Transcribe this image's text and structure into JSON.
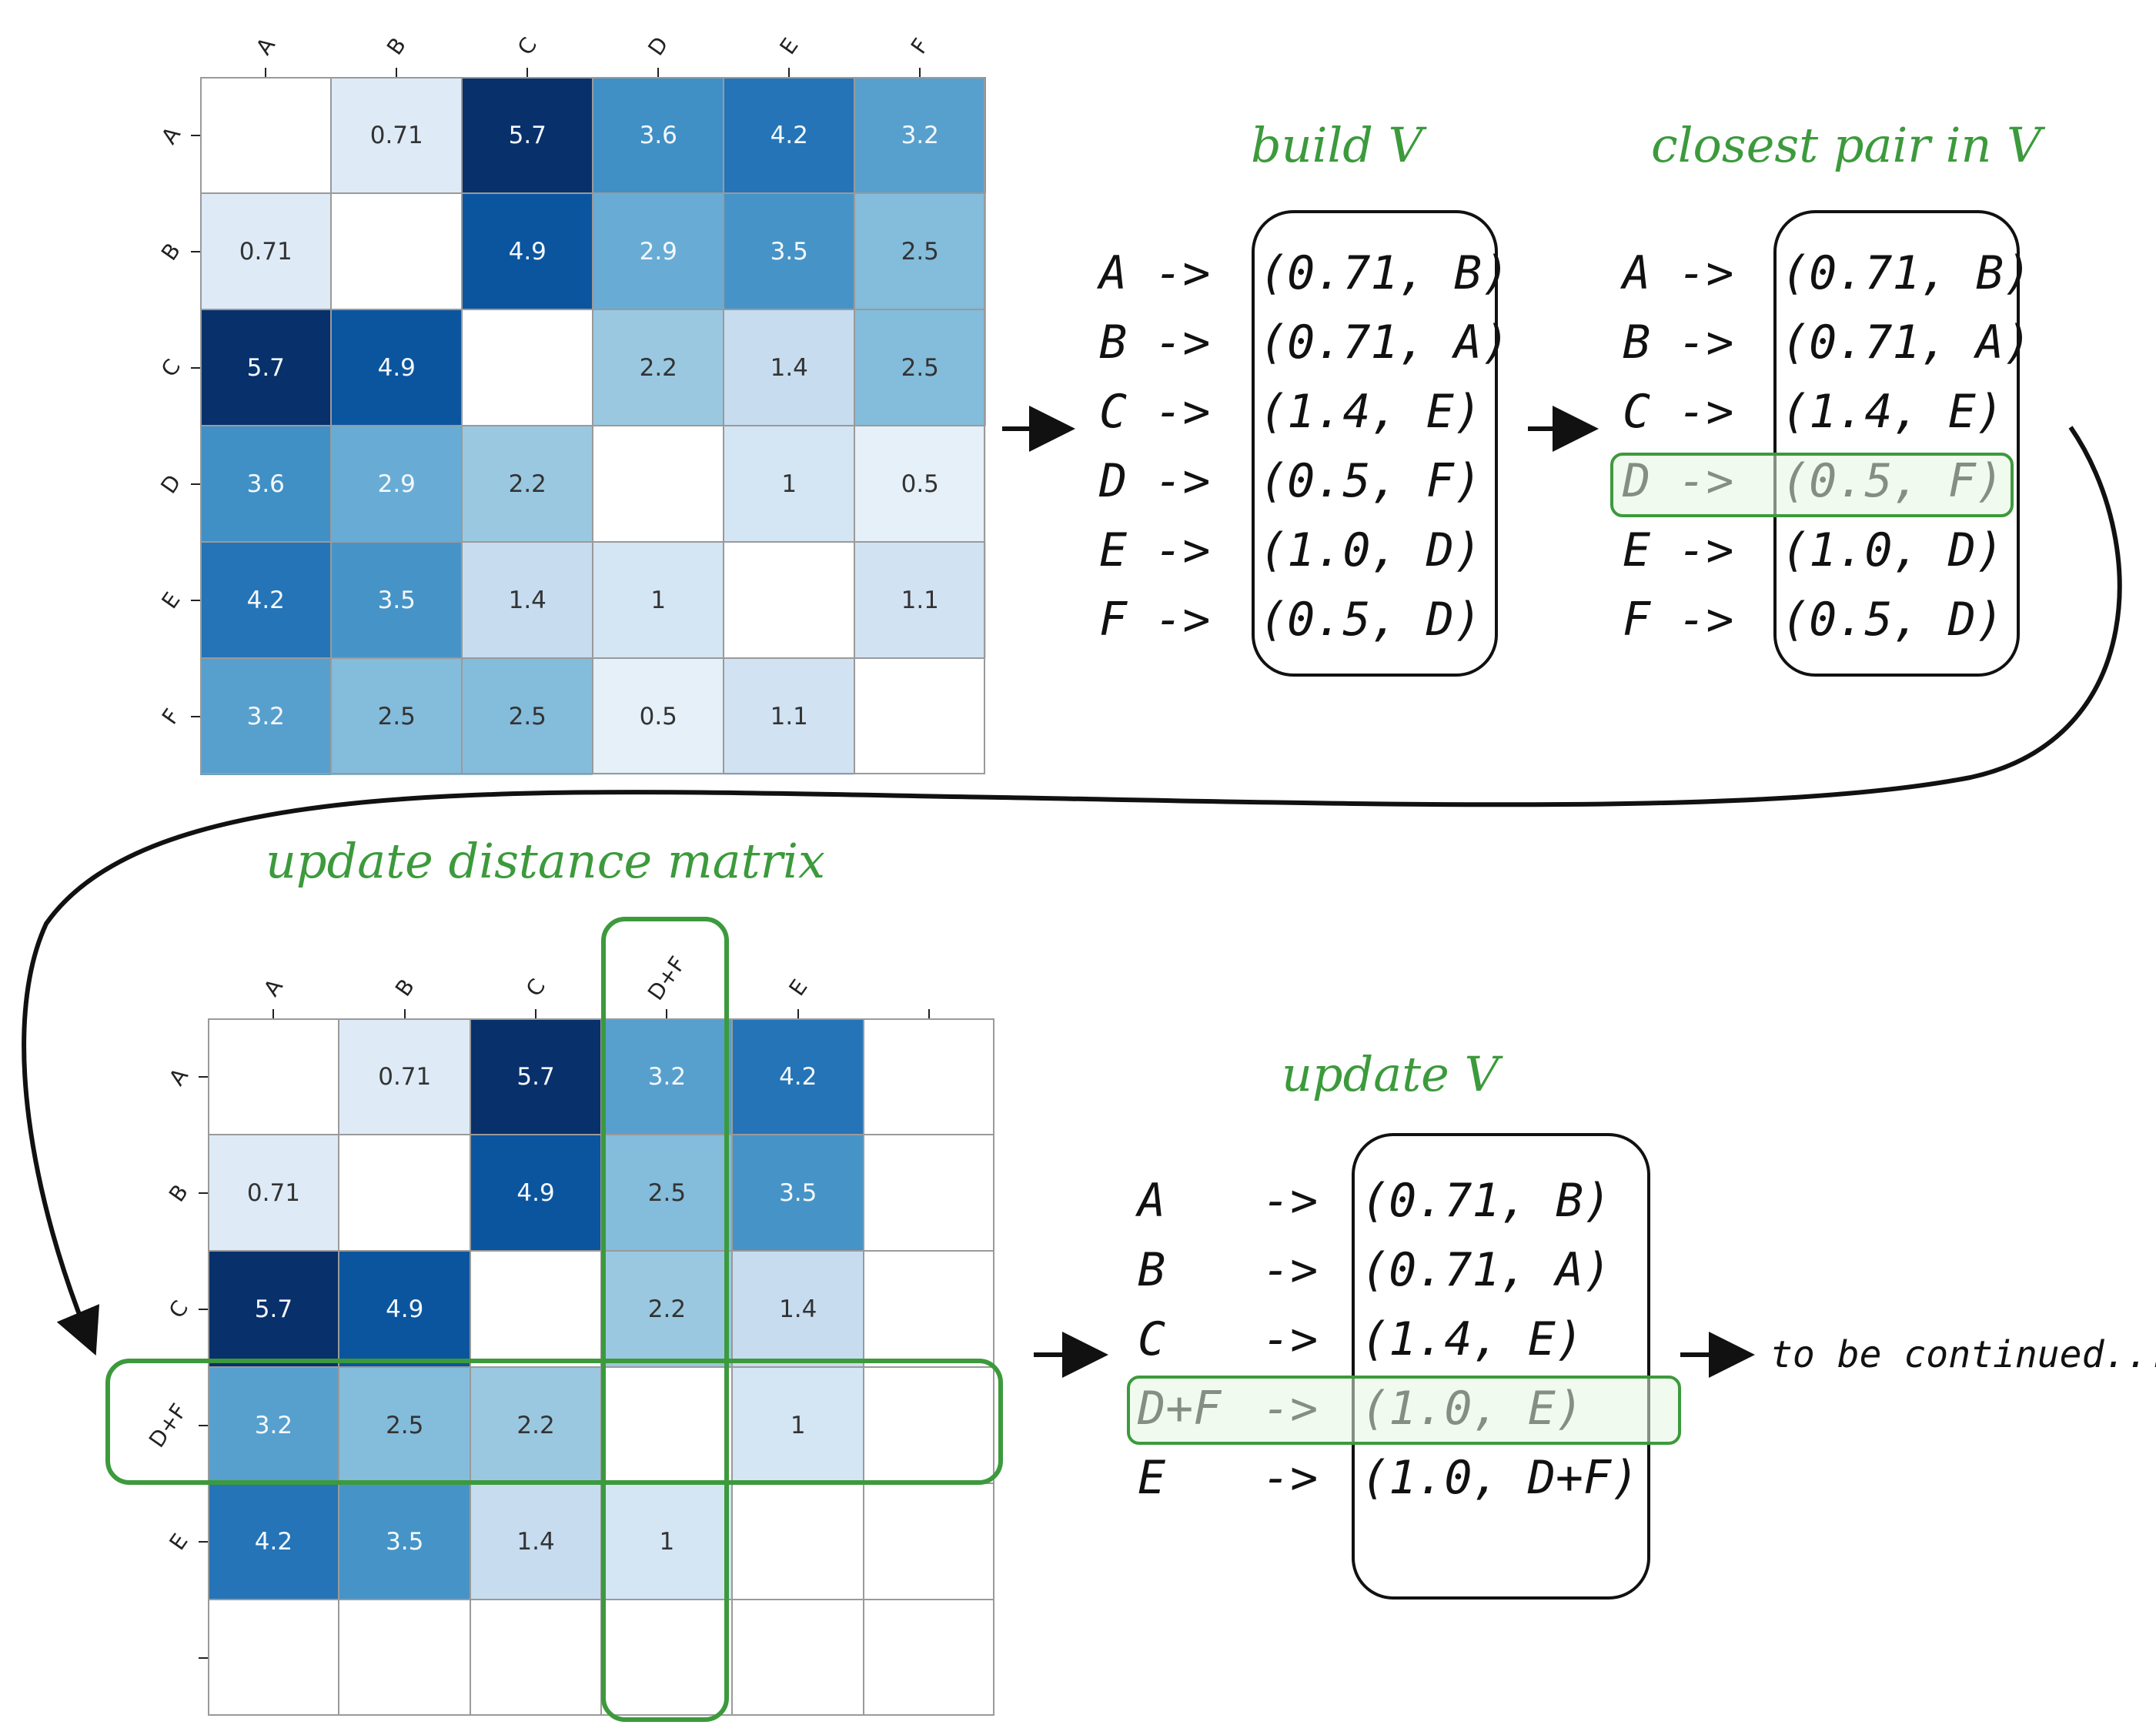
{
  "matrix_initial": {
    "col_labels": [
      "A",
      "B",
      "C",
      "D",
      "E",
      "F"
    ],
    "row_labels": [
      "A",
      "B",
      "C",
      "D",
      "E",
      "F"
    ],
    "values": [
      [
        "",
        "0.71",
        "5.7",
        "3.6",
        "4.2",
        "3.2"
      ],
      [
        "0.71",
        "",
        "4.9",
        "2.9",
        "3.5",
        "2.5"
      ],
      [
        "5.7",
        "4.9",
        "",
        "2.2",
        "1.4",
        "2.5"
      ],
      [
        "3.6",
        "2.9",
        "2.2",
        "",
        "1",
        "0.5"
      ],
      [
        "4.2",
        "3.5",
        "1.4",
        "1",
        "",
        "1.1"
      ],
      [
        "3.2",
        "2.5",
        "2.5",
        "0.5",
        "1.1",
        ""
      ]
    ]
  },
  "matrix_updated": {
    "col_labels": [
      "A",
      "B",
      "C",
      "D+F",
      "E",
      ""
    ],
    "row_labels": [
      "A",
      "B",
      "C",
      "D+F",
      "E",
      ""
    ],
    "values": [
      [
        "",
        "0.71",
        "5.7",
        "3.2",
        "4.2",
        ""
      ],
      [
        "0.71",
        "",
        "4.9",
        "2.5",
        "3.5",
        ""
      ],
      [
        "5.7",
        "4.9",
        "",
        "2.2",
        "1.4",
        ""
      ],
      [
        "3.2",
        "2.5",
        "2.2",
        "",
        "1",
        ""
      ],
      [
        "4.2",
        "3.5",
        "1.4",
        "1",
        "",
        ""
      ],
      [
        "",
        "",
        "",
        "",
        "",
        ""
      ]
    ]
  },
  "build_v": {
    "title": "build V",
    "rows": [
      {
        "key": "A ->",
        "value": "(0.71, B)"
      },
      {
        "key": "B ->",
        "value": "(0.71, A)"
      },
      {
        "key": "C ->",
        "value": "(1.4, E)"
      },
      {
        "key": "D ->",
        "value": "(0.5, F)"
      },
      {
        "key": "E ->",
        "value": "(1.0, D)"
      },
      {
        "key": "F ->",
        "value": "(0.5, D)"
      }
    ]
  },
  "closest_pair": {
    "title": "closest pair in V",
    "highlight_index": 3,
    "rows": [
      {
        "key": "A ->",
        "value": "(0.71, B)"
      },
      {
        "key": "B ->",
        "value": "(0.71, A)"
      },
      {
        "key": "C ->",
        "value": "(1.4, E)"
      },
      {
        "key": "D ->",
        "value": "(0.5, F)"
      },
      {
        "key": "E ->",
        "value": "(1.0, D)"
      },
      {
        "key": "F ->",
        "value": "(0.5, D)"
      }
    ]
  },
  "update_matrix": {
    "title": "update distance matrix"
  },
  "update_v": {
    "title": "update V",
    "highlight_index": 3,
    "rows": [
      {
        "key": "A",
        "arrow": "->",
        "value": "(0.71, B)"
      },
      {
        "key": "B",
        "arrow": "->",
        "value": "(0.71, A)"
      },
      {
        "key": "C",
        "arrow": "->",
        "value": "(1.4, E)"
      },
      {
        "key": "D+F",
        "arrow": "->",
        "value": "(1.0, E)"
      },
      {
        "key": "E",
        "arrow": "->",
        "value": "(1.0, D+F)"
      }
    ]
  },
  "continued": "to be continued...",
  "colors": {
    "accent_green": "#3c9a3c",
    "highlight_fill": "#e6f6e2",
    "ink": "#111111"
  }
}
